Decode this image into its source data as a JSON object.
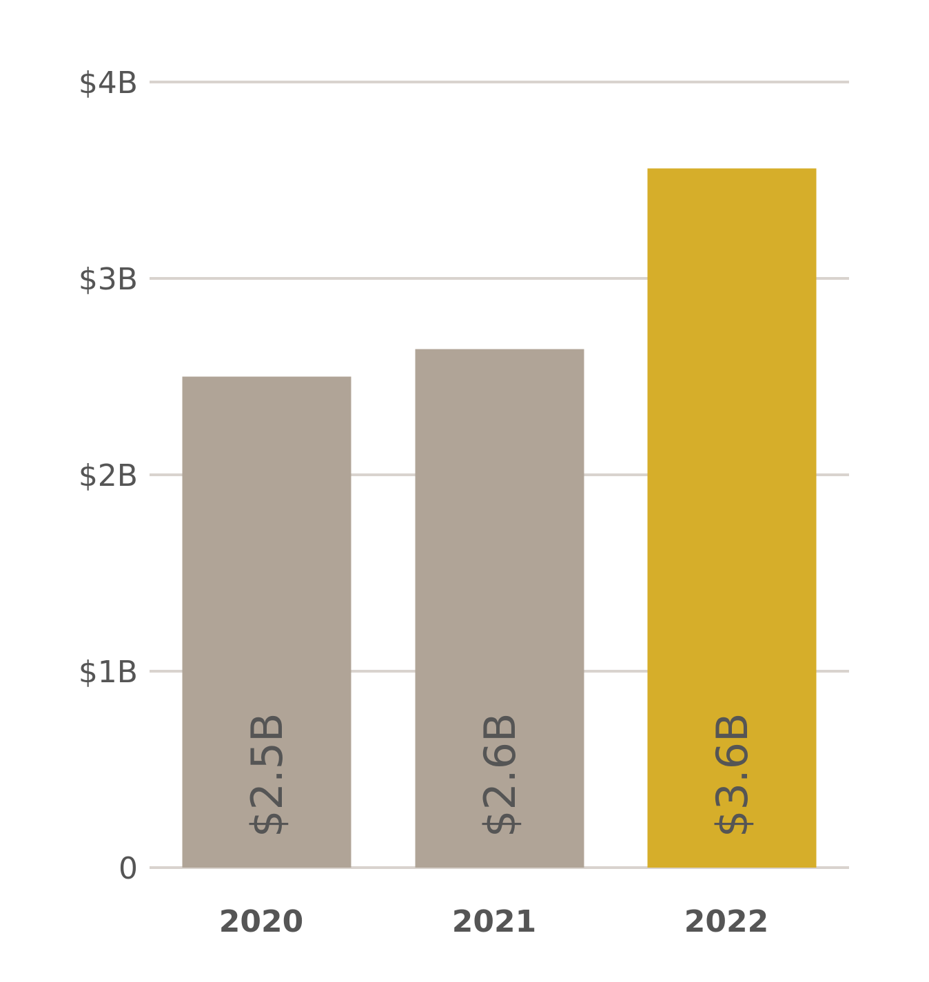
{
  "chart_data": {
    "type": "bar",
    "title": "",
    "xlabel": "",
    "ylabel": "",
    "categories": [
      "2020",
      "2021",
      "2022"
    ],
    "values": [
      2.5,
      2.64,
      3.56
    ],
    "data_labels": [
      "$2.5B",
      "$2.6B",
      "$3.6B"
    ],
    "ylim": [
      0,
      4
    ],
    "yticks": [
      0,
      1,
      2,
      3,
      4
    ],
    "ytick_labels": [
      "0",
      "$1B",
      "$2B",
      "$3B",
      "$4B"
    ],
    "grid": true,
    "colors": {
      "default_bar": "#b0a497",
      "highlight_bar": "#d6ae2a",
      "gridline": "#d9d3ce",
      "text": "#555555"
    },
    "highlight_index": 2
  }
}
